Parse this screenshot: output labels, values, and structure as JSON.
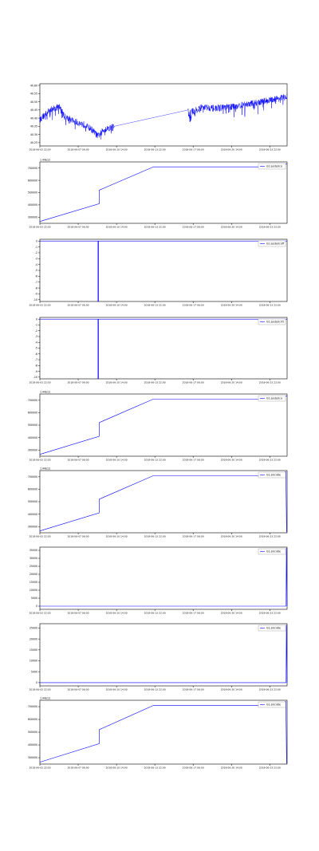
{
  "colors": {
    "line": "#0000ff",
    "axis": "#000000",
    "background": "#ffffff"
  },
  "chart_data": [
    {
      "type": "line",
      "title": "",
      "xlabel": "",
      "ylabel": "",
      "x_ticks": [
        "2018-06-03 22:00",
        "2018-06-07 06:00",
        "2018-06-10 14:00",
        "2018-06-13 22:00",
        "2018-06-17 06:00",
        "2018-06-20 14:00",
        "2018-06-23 22:00"
      ],
      "y_ticks": [
        "40.25",
        "40.30",
        "40.35",
        "40.40",
        "40.45",
        "40.50",
        "40.55",
        "40.60"
      ],
      "ylim": [
        40.23,
        40.61
      ],
      "legend": "",
      "grid": false,
      "series": [
        {
          "values": []
        }
      ]
    },
    {
      "type": "line",
      "offset_text": "1.44e12",
      "x_ticks": [
        "2018-06-03 22:00",
        "2018-06-07 06:00",
        "2018-06-10 14:00",
        "2018-06-13 22:00",
        "2018-06-17 06:00",
        "2018-06-20 14:00",
        "2018-06-23 22:00"
      ],
      "y_ticks": [
        "300000",
        "400000",
        "500000",
        "600000",
        "700000"
      ],
      "ylim": [
        250000,
        750000
      ],
      "legend_label": "G1.system:o",
      "legend_placement": "top-right",
      "grid": false,
      "series": [
        {
          "name": "G1.system:o",
          "points": [
            [
              0,
              265000
            ],
            [
              0.24,
              410000
            ],
            [
              0.24,
              520000
            ],
            [
              0.46,
              710000
            ],
            [
              0.95,
              710000
            ],
            [
              1.0,
              735000
            ]
          ]
        }
      ]
    },
    {
      "type": "line",
      "x_ticks": [
        "2018-06-03 22:00",
        "2018-06-07 06:00",
        "2018-06-10 14:00",
        "2018-06-13 22:00",
        "2018-06-17 06:00",
        "2018-06-20 14:00",
        "2018-06-23 22:00"
      ],
      "y_ticks": [
        "0",
        "-1",
        "-2",
        "-3",
        "-4",
        "-5",
        "-6",
        "-7",
        "-8",
        "-9",
        "-10"
      ],
      "ylim": [
        -10.3,
        0.3
      ],
      "legend_label": "G1.system:off",
      "legend_placement": "top-right",
      "grid": false,
      "series": [
        {
          "name": "G1.system:off",
          "points": [
            [
              0,
              0
            ],
            [
              0.235,
              0
            ],
            [
              0.235,
              -10.3
            ],
            [
              0.237,
              -10.3
            ],
            [
              0.237,
              0
            ],
            [
              1.0,
              0
            ]
          ]
        }
      ]
    },
    {
      "type": "line",
      "x_ticks": [
        "2018-06-03 22:00",
        "2018-06-07 06:00",
        "2018-06-10 14:00",
        "2018-06-13 22:00",
        "2018-06-17 06:00",
        "2018-06-20 14:00",
        "2018-06-23 22:00"
      ],
      "y_ticks": [
        "0",
        "-1",
        "-2",
        "-3",
        "-4",
        "-5",
        "-6",
        "-7",
        "-8",
        "-9",
        "-10"
      ],
      "ylim": [
        -10.3,
        0.3
      ],
      "legend_label": "G1.system:rtt",
      "legend_placement": "top-right",
      "grid": false,
      "series": [
        {
          "name": "G1.system:rtt",
          "points": [
            [
              0,
              0
            ],
            [
              0.235,
              0
            ],
            [
              0.235,
              -10.3
            ],
            [
              0.237,
              -10.3
            ],
            [
              0.237,
              0
            ],
            [
              1.0,
              0
            ]
          ]
        }
      ]
    },
    {
      "type": "line",
      "offset_text": "1.44e12",
      "x_ticks": [
        "2018-06-03 22:00",
        "2018-06-07 06:00",
        "2018-06-10 14:00",
        "2018-06-13 22:00",
        "2018-06-17 06:00",
        "2018-06-20 14:00",
        "2018-06-23 22:00"
      ],
      "y_ticks": [
        "300000",
        "400000",
        "500000",
        "600000",
        "700000"
      ],
      "ylim": [
        250000,
        750000
      ],
      "legend_label": "G1.system:o",
      "legend_placement": "top-right",
      "grid": false,
      "series": [
        {
          "name": "G1.system:o",
          "points": [
            [
              0,
              265000
            ],
            [
              0.24,
              410000
            ],
            [
              0.24,
              520000
            ],
            [
              0.46,
              710000
            ],
            [
              0.95,
              710000
            ],
            [
              1.0,
              735000
            ]
          ]
        }
      ]
    },
    {
      "type": "line",
      "offset_text": "1.44e12",
      "x_ticks": [
        "2018-06-03 22:00",
        "2018-06-07 06:00",
        "2018-06-10 14:00",
        "2018-06-13 22:00",
        "2018-06-17 06:00",
        "2018-06-20 14:00",
        "2018-06-23 22:00"
      ],
      "y_ticks": [
        "300000",
        "400000",
        "500000",
        "600000",
        "700000"
      ],
      "ylim": [
        250000,
        750000
      ],
      "legend_label": "G1.sim:idle",
      "legend_placement": "top-right",
      "grid": false,
      "series": [
        {
          "name": "G1.sim:idle",
          "points": [
            [
              0,
              265000
            ],
            [
              0.24,
              410000
            ],
            [
              0.24,
              520000
            ],
            [
              0.46,
              710000
            ],
            [
              0.95,
              710000
            ],
            [
              0.995,
              740000
            ],
            [
              0.998,
              255000
            ]
          ]
        }
      ]
    },
    {
      "type": "line",
      "x_ticks": [
        "2018-06-03 22:00",
        "2018-06-07 06:00",
        "2018-06-10 14:00",
        "2018-06-13 22:00",
        "2018-06-17 06:00",
        "2018-06-20 14:00",
        "2018-06-23 22:00"
      ],
      "y_ticks": [
        "0",
        "5000",
        "10000",
        "15000",
        "20000",
        "25000",
        "30000",
        "35000"
      ],
      "ylim": [
        -2000,
        37000
      ],
      "legend_label": "G1.sim:idle",
      "legend_placement": "top-right",
      "grid": false,
      "series": [
        {
          "name": "G1.sim:idle",
          "points": [
            [
              0,
              0
            ],
            [
              0.996,
              0
            ],
            [
              0.997,
              36500
            ],
            [
              1.0,
              0
            ]
          ]
        }
      ]
    },
    {
      "type": "line",
      "x_ticks": [
        "2018-06-03 22:00",
        "2018-06-07 06:00",
        "2018-06-10 14:00",
        "2018-06-13 22:00",
        "2018-06-17 06:00",
        "2018-06-20 14:00",
        "2018-06-23 22:00"
      ],
      "y_ticks": [
        "0",
        "5000",
        "10000",
        "15000",
        "20000",
        "25000"
      ],
      "ylim": [
        -1500,
        27000
      ],
      "legend_label": "G1.sim:idle",
      "legend_placement": "top-right",
      "grid": false,
      "series": [
        {
          "name": "G1.sim:idle",
          "points": [
            [
              0,
              0
            ],
            [
              0.996,
              0
            ],
            [
              0.997,
              26500
            ],
            [
              1.0,
              0
            ]
          ]
        }
      ]
    },
    {
      "type": "line",
      "offset_text": "1.44e12",
      "x_ticks": [
        "2018-06-03 22:00",
        "2018-06-07 06:00",
        "2018-06-10 14:00",
        "2018-06-13 22:00",
        "2018-06-17 06:00",
        "2018-06-20 14:00",
        "2018-06-23 22:00"
      ],
      "y_ticks": [
        "300000",
        "400000",
        "500000",
        "600000",
        "700000"
      ],
      "ylim": [
        250000,
        750000
      ],
      "legend_label": "G1.sim:idle",
      "legend_placement": "top-right",
      "grid": false,
      "series": [
        {
          "name": "G1.sim:idle",
          "points": [
            [
              0,
              265000
            ],
            [
              0.24,
              410000
            ],
            [
              0.24,
              520000
            ],
            [
              0.46,
              710000
            ],
            [
              0.95,
              710000
            ],
            [
              0.995,
              740000
            ],
            [
              0.998,
              255000
            ]
          ]
        }
      ]
    }
  ]
}
